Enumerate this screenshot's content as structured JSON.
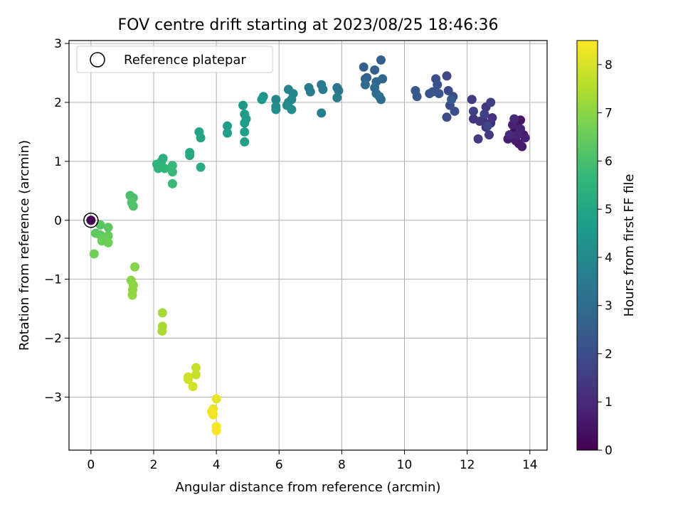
{
  "chart_data": {
    "type": "scatter",
    "title": "FOV centre drift starting at 2023/08/25 18:46:36",
    "xlabel": "Angular distance from reference (arcmin)",
    "ylabel": "Rotation from reference (arcmin)",
    "xlim": [
      -0.7,
      14.55
    ],
    "ylim": [
      -3.9,
      3.05
    ],
    "xticks": [
      0,
      2,
      4,
      6,
      8,
      10,
      12,
      14
    ],
    "xtick_labels": [
      "0",
      "2",
      "4",
      "6",
      "8",
      "10",
      "12",
      "14"
    ],
    "yticks": [
      -3,
      -2,
      -1,
      0,
      1,
      2,
      3
    ],
    "ytick_labels": [
      "−3",
      "−2",
      "−1",
      "0",
      "1",
      "2",
      "3"
    ],
    "grid": true,
    "legend": {
      "location": "upper-left",
      "entries": [
        "Reference platepar"
      ]
    },
    "reference_point": {
      "x": 0,
      "y": 0
    },
    "colorbar": {
      "label": "Hours from first FF file",
      "range": [
        0,
        8.5
      ],
      "ticks": [
        0,
        1,
        2,
        3,
        4,
        5,
        6,
        7,
        8
      ],
      "tick_labels": [
        "0",
        "1",
        "2",
        "3",
        "4",
        "5",
        "6",
        "7",
        "8"
      ],
      "colormap": "viridis",
      "colors": [
        "#440154",
        "#482878",
        "#3e4989",
        "#31688e",
        "#26828e",
        "#1f9e89",
        "#35b779",
        "#6ece58",
        "#b5de2b",
        "#fde725"
      ]
    },
    "points": [
      {
        "x": 13.4,
        "y": 1.42,
        "t": 0.3
      },
      {
        "x": 13.5,
        "y": 1.5,
        "t": 0.35
      },
      {
        "x": 13.6,
        "y": 1.6,
        "t": 0.4
      },
      {
        "x": 13.7,
        "y": 1.7,
        "t": 0.45
      },
      {
        "x": 13.8,
        "y": 1.45,
        "t": 0.5
      },
      {
        "x": 13.65,
        "y": 1.3,
        "t": 0.55
      },
      {
        "x": 13.75,
        "y": 1.25,
        "t": 0.6
      },
      {
        "x": 13.55,
        "y": 1.35,
        "t": 0.65
      },
      {
        "x": 13.3,
        "y": 1.38,
        "t": 0.7
      },
      {
        "x": 13.45,
        "y": 1.62,
        "t": 0.75
      },
      {
        "x": 13.85,
        "y": 1.4,
        "t": 0.8
      },
      {
        "x": 13.7,
        "y": 1.55,
        "t": 0.85
      },
      {
        "x": 13.6,
        "y": 1.45,
        "t": 0.9
      },
      {
        "x": 13.5,
        "y": 1.72,
        "t": 0.95
      },
      {
        "x": 13.35,
        "y": 1.45,
        "t": 1.0
      },
      {
        "x": 12.75,
        "y": 1.65,
        "t": 1.1
      },
      {
        "x": 12.6,
        "y": 1.58,
        "t": 1.15
      },
      {
        "x": 12.5,
        "y": 1.7,
        "t": 1.2
      },
      {
        "x": 12.8,
        "y": 1.74,
        "t": 1.25
      },
      {
        "x": 12.2,
        "y": 1.72,
        "t": 1.3
      },
      {
        "x": 12.4,
        "y": 1.68,
        "t": 1.35
      },
      {
        "x": 12.6,
        "y": 1.92,
        "t": 1.4
      },
      {
        "x": 12.35,
        "y": 1.38,
        "t": 1.45
      },
      {
        "x": 12.7,
        "y": 1.45,
        "t": 1.5
      },
      {
        "x": 12.15,
        "y": 2.05,
        "t": 1.55
      },
      {
        "x": 12.75,
        "y": 2.0,
        "t": 1.6
      },
      {
        "x": 12.2,
        "y": 1.85,
        "t": 1.65
      },
      {
        "x": 12.55,
        "y": 1.8,
        "t": 1.7
      },
      {
        "x": 12.65,
        "y": 1.6,
        "t": 1.75
      },
      {
        "x": 11.35,
        "y": 2.45,
        "t": 1.8
      },
      {
        "x": 11.4,
        "y": 2.2,
        "t": 1.85
      },
      {
        "x": 11.55,
        "y": 2.1,
        "t": 1.9
      },
      {
        "x": 11.45,
        "y": 1.95,
        "t": 1.95
      },
      {
        "x": 11.35,
        "y": 1.75,
        "t": 2.0
      },
      {
        "x": 11.6,
        "y": 1.85,
        "t": 2.05
      },
      {
        "x": 11.0,
        "y": 2.4,
        "t": 2.1
      },
      {
        "x": 11.05,
        "y": 2.3,
        "t": 2.15
      },
      {
        "x": 10.8,
        "y": 2.15,
        "t": 2.2
      },
      {
        "x": 10.9,
        "y": 2.18,
        "t": 2.25
      },
      {
        "x": 11.1,
        "y": 2.15,
        "t": 2.3
      },
      {
        "x": 10.35,
        "y": 2.2,
        "t": 2.35
      },
      {
        "x": 10.4,
        "y": 2.1,
        "t": 2.4
      },
      {
        "x": 11.5,
        "y": 2.05,
        "t": 2.45
      },
      {
        "x": 9.25,
        "y": 2.72,
        "t": 2.55
      },
      {
        "x": 8.7,
        "y": 2.6,
        "t": 2.6
      },
      {
        "x": 9.05,
        "y": 2.55,
        "t": 2.65
      },
      {
        "x": 8.75,
        "y": 2.4,
        "t": 2.7
      },
      {
        "x": 8.8,
        "y": 2.42,
        "t": 2.75
      },
      {
        "x": 9.3,
        "y": 2.4,
        "t": 2.8
      },
      {
        "x": 9.1,
        "y": 2.35,
        "t": 2.85
      },
      {
        "x": 8.75,
        "y": 2.3,
        "t": 2.9
      },
      {
        "x": 9.05,
        "y": 2.25,
        "t": 2.95
      },
      {
        "x": 9.1,
        "y": 2.15,
        "t": 3.0
      },
      {
        "x": 9.2,
        "y": 2.1,
        "t": 3.05
      },
      {
        "x": 9.25,
        "y": 2.05,
        "t": 3.1
      },
      {
        "x": 7.85,
        "y": 2.25,
        "t": 3.3
      },
      {
        "x": 7.9,
        "y": 2.2,
        "t": 3.35
      },
      {
        "x": 7.35,
        "y": 2.3,
        "t": 3.4
      },
      {
        "x": 7.4,
        "y": 2.22,
        "t": 3.45
      },
      {
        "x": 6.95,
        "y": 2.25,
        "t": 3.5
      },
      {
        "x": 7.0,
        "y": 2.18,
        "t": 3.55
      },
      {
        "x": 7.85,
        "y": 2.08,
        "t": 3.6
      },
      {
        "x": 7.35,
        "y": 1.82,
        "t": 3.65
      },
      {
        "x": 6.3,
        "y": 2.22,
        "t": 3.8
      },
      {
        "x": 6.45,
        "y": 2.15,
        "t": 3.85
      },
      {
        "x": 5.9,
        "y": 2.05,
        "t": 3.9
      },
      {
        "x": 6.3,
        "y": 2.0,
        "t": 3.95
      },
      {
        "x": 6.4,
        "y": 2.05,
        "t": 4.0
      },
      {
        "x": 6.25,
        "y": 1.95,
        "t": 4.05
      },
      {
        "x": 5.9,
        "y": 1.93,
        "t": 4.1
      },
      {
        "x": 6.4,
        "y": 1.88,
        "t": 4.15
      },
      {
        "x": 5.9,
        "y": 1.88,
        "t": 4.2
      },
      {
        "x": 5.5,
        "y": 2.1,
        "t": 4.4
      },
      {
        "x": 5.45,
        "y": 2.05,
        "t": 4.45
      },
      {
        "x": 4.85,
        "y": 1.95,
        "t": 4.5
      },
      {
        "x": 4.9,
        "y": 1.8,
        "t": 4.55
      },
      {
        "x": 4.95,
        "y": 1.72,
        "t": 4.6
      },
      {
        "x": 4.9,
        "y": 1.65,
        "t": 4.65
      },
      {
        "x": 4.35,
        "y": 1.6,
        "t": 4.7
      },
      {
        "x": 4.35,
        "y": 1.48,
        "t": 4.75
      },
      {
        "x": 4.9,
        "y": 1.5,
        "t": 4.8
      },
      {
        "x": 4.9,
        "y": 1.33,
        "t": 4.85
      },
      {
        "x": 3.45,
        "y": 1.5,
        "t": 4.95
      },
      {
        "x": 3.5,
        "y": 1.4,
        "t": 5.0
      },
      {
        "x": 3.15,
        "y": 1.15,
        "t": 5.1
      },
      {
        "x": 3.15,
        "y": 1.1,
        "t": 5.15
      },
      {
        "x": 3.5,
        "y": 0.9,
        "t": 5.2
      },
      {
        "x": 2.3,
        "y": 1.05,
        "t": 5.35
      },
      {
        "x": 2.25,
        "y": 1.0,
        "t": 5.4
      },
      {
        "x": 2.1,
        "y": 0.95,
        "t": 5.45
      },
      {
        "x": 2.2,
        "y": 0.9,
        "t": 5.5
      },
      {
        "x": 2.15,
        "y": 0.88,
        "t": 5.55
      },
      {
        "x": 2.35,
        "y": 0.88,
        "t": 5.6
      },
      {
        "x": 2.6,
        "y": 0.93,
        "t": 5.65
      },
      {
        "x": 2.6,
        "y": 0.82,
        "t": 5.7
      },
      {
        "x": 2.6,
        "y": 0.62,
        "t": 5.75
      },
      {
        "x": 1.25,
        "y": 0.42,
        "t": 6.0
      },
      {
        "x": 1.35,
        "y": 0.38,
        "t": 6.05
      },
      {
        "x": 1.3,
        "y": 0.3,
        "t": 6.1
      },
      {
        "x": 1.35,
        "y": 0.24,
        "t": 6.15
      },
      {
        "x": 0.3,
        "y": -0.08,
        "t": 6.25
      },
      {
        "x": 0.55,
        "y": -0.12,
        "t": 6.3
      },
      {
        "x": 0.15,
        "y": -0.22,
        "t": 6.35
      },
      {
        "x": 0.3,
        "y": -0.25,
        "t": 6.4
      },
      {
        "x": 0.45,
        "y": -0.3,
        "t": 6.45
      },
      {
        "x": 0.55,
        "y": -0.26,
        "t": 6.5
      },
      {
        "x": 0.35,
        "y": -0.35,
        "t": 6.55
      },
      {
        "x": 0.55,
        "y": -0.38,
        "t": 6.6
      },
      {
        "x": 0.1,
        "y": -0.57,
        "t": 6.65
      },
      {
        "x": 1.4,
        "y": -0.79,
        "t": 6.9
      },
      {
        "x": 1.28,
        "y": -1.02,
        "t": 6.95
      },
      {
        "x": 1.35,
        "y": -1.1,
        "t": 7.0
      },
      {
        "x": 1.33,
        "y": -1.18,
        "t": 7.05
      },
      {
        "x": 1.32,
        "y": -1.27,
        "t": 7.1
      },
      {
        "x": 2.28,
        "y": -1.57,
        "t": 7.3
      },
      {
        "x": 2.28,
        "y": -1.8,
        "t": 7.35
      },
      {
        "x": 2.27,
        "y": -1.88,
        "t": 7.4
      },
      {
        "x": 3.35,
        "y": -2.5,
        "t": 7.75
      },
      {
        "x": 3.35,
        "y": -2.62,
        "t": 7.8
      },
      {
        "x": 3.1,
        "y": -2.66,
        "t": 7.85
      },
      {
        "x": 3.1,
        "y": -2.7,
        "t": 7.9
      },
      {
        "x": 3.25,
        "y": -2.82,
        "t": 7.95
      },
      {
        "x": 4.0,
        "y": -3.03,
        "t": 8.2
      },
      {
        "x": 3.9,
        "y": -3.2,
        "t": 8.25
      },
      {
        "x": 3.85,
        "y": -3.25,
        "t": 8.3
      },
      {
        "x": 3.9,
        "y": -3.3,
        "t": 8.35
      },
      {
        "x": 4.0,
        "y": -3.5,
        "t": 8.4
      },
      {
        "x": 4.0,
        "y": -3.57,
        "t": 8.45
      }
    ]
  }
}
